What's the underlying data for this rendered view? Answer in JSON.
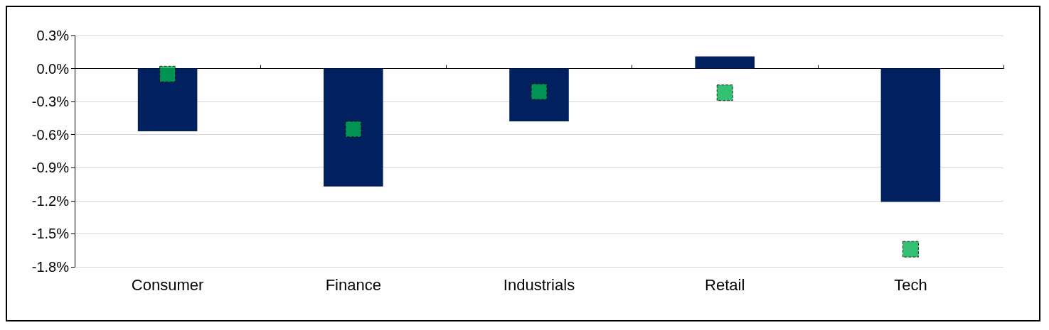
{
  "chart_data": {
    "type": "bar",
    "categories": [
      "Consumer",
      "Finance",
      "Industrials",
      "Retail",
      "Tech"
    ],
    "series": [
      {
        "color": "#002060",
        "values": [
          -0.57,
          -1.07,
          -0.48,
          0.11,
          -1.21
        ]
      },
      {
        "type": "scatter",
        "color": "#00b050",
        "marker": "square",
        "values": [
          -0.05,
          -0.55,
          -0.21,
          -0.22,
          -1.64
        ]
      }
    ],
    "ylim": [
      -1.8,
      0.3
    ],
    "yticks": [
      {
        "value": -1.8,
        "label": "-1.8%"
      },
      {
        "value": -1.5,
        "label": "-1.5%"
      },
      {
        "value": -1.2,
        "label": "-1.2%"
      },
      {
        "value": -0.9,
        "label": "-0.9%"
      },
      {
        "value": -0.6,
        "label": "-0.6%"
      },
      {
        "value": -0.3,
        "label": "-0.3%"
      },
      {
        "value": 0,
        "label": "0.0%"
      },
      {
        "value": 0.3,
        "label": "0.3%"
      }
    ],
    "grid": "y"
  }
}
